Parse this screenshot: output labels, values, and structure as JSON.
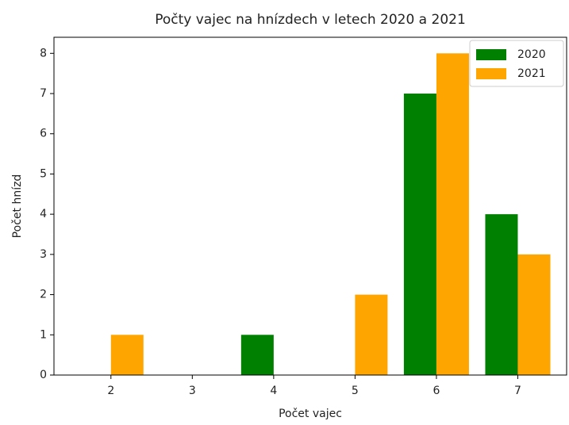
{
  "chart_data": {
    "type": "bar",
    "title": "Počty vajec na hnízdech v letech 2020 a 2021",
    "xlabel": "Počet vajec",
    "ylabel": "Počet hnízd",
    "x": [
      2,
      3,
      4,
      5,
      6,
      7
    ],
    "series": [
      {
        "name": "2020",
        "color": "#008000",
        "values": [
          0,
          0,
          1,
          0,
          7,
          4
        ]
      },
      {
        "name": "2021",
        "color": "#ffa500",
        "values": [
          1,
          0,
          0,
          2,
          8,
          3
        ]
      }
    ],
    "xlim": [
      1.3,
      7.6
    ],
    "xticks": [
      2,
      3,
      4,
      5,
      6,
      7
    ],
    "ylim": [
      0,
      8.4
    ],
    "yticks": [
      0,
      1,
      2,
      3,
      4,
      5,
      6,
      7,
      8
    ],
    "legend": "upper right"
  }
}
